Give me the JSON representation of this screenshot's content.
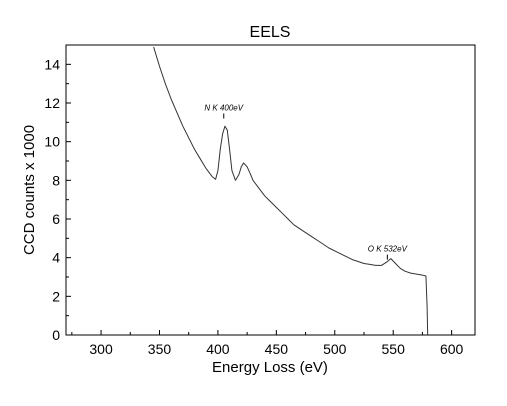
{
  "chart_data": {
    "type": "line",
    "title": "EELS",
    "xlabel": "Energy Loss (eV)",
    "ylabel": "CCD counts  x 1000",
    "xlim": [
      270,
      620
    ],
    "ylim": [
      0,
      15
    ],
    "xticks": [
      "300",
      "350",
      "400",
      "450",
      "500",
      "550",
      "600"
    ],
    "yticks": [
      "0",
      "2",
      "4",
      "6",
      "8",
      "10",
      "12",
      "14"
    ],
    "grid": false,
    "series": [
      {
        "x": [
          345,
          350,
          355,
          360,
          365,
          370,
          375,
          380,
          385,
          390,
          395,
          398,
          400,
          402,
          404,
          406,
          408,
          410,
          412,
          415,
          418,
          420,
          422,
          425,
          428,
          430,
          435,
          440,
          445,
          450,
          455,
          460,
          465,
          470,
          475,
          480,
          485,
          490,
          495,
          500,
          505,
          510,
          515,
          520,
          525,
          530,
          535,
          540,
          545,
          548,
          552,
          556,
          560,
          565,
          570,
          575,
          578,
          579,
          579.5
        ],
        "y": [
          14.9,
          13.9,
          13.0,
          12.2,
          11.5,
          10.8,
          10.2,
          9.6,
          9.1,
          8.6,
          8.2,
          8.05,
          8.5,
          9.6,
          10.4,
          10.8,
          10.6,
          9.6,
          8.5,
          8.0,
          8.3,
          8.7,
          8.9,
          8.7,
          8.3,
          8.0,
          7.6,
          7.2,
          6.9,
          6.6,
          6.3,
          6.0,
          5.7,
          5.5,
          5.3,
          5.1,
          4.9,
          4.7,
          4.5,
          4.35,
          4.2,
          4.05,
          3.9,
          3.8,
          3.7,
          3.65,
          3.6,
          3.6,
          3.8,
          3.95,
          3.7,
          3.45,
          3.3,
          3.2,
          3.15,
          3.1,
          3.05,
          1.5,
          0
        ]
      }
    ],
    "annotations": [
      {
        "text": "N K 400eV",
        "x": 405,
        "y": 11.2
      },
      {
        "text": "O K 532eV",
        "x": 545,
        "y": 3.9
      }
    ]
  }
}
